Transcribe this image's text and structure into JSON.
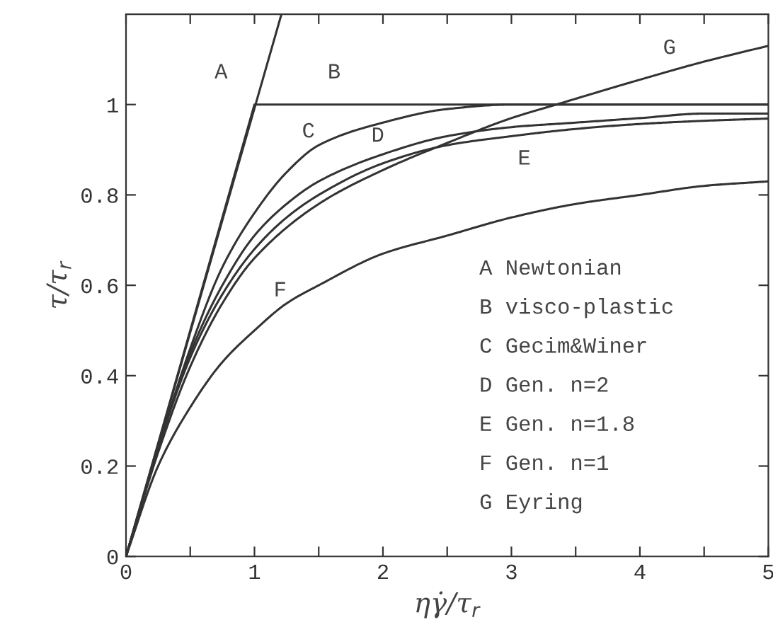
{
  "chart_data": {
    "type": "line",
    "xlabel": "ηγ̇/τ$_{r}$",
    "ylabel": "τ/τ$_{r}$",
    "xlim": [
      0,
      5
    ],
    "ylim": [
      0,
      1.2
    ],
    "xticks": [
      0,
      {
        "value": 0.5,
        "label": null
      },
      1,
      {
        "value": 1.5,
        "label": null
      },
      2,
      {
        "value": 2.5,
        "label": null
      },
      3,
      {
        "value": 3.5,
        "label": null
      },
      4,
      {
        "value": 4.5,
        "label": null
      },
      5
    ],
    "yticks": [
      0,
      0.2,
      0.4,
      0.6,
      0.8,
      1
    ],
    "grid": false,
    "legend": false,
    "series": [
      {
        "color": "#333333",
        "x": [
          0,
          1.21
        ],
        "values": [
          0,
          1.2
        ]
      },
      {
        "color": "#333333",
        "x": [
          0,
          1,
          5
        ],
        "values": [
          0,
          1,
          1
        ]
      },
      {
        "color": "#333333",
        "x": [
          0,
          0.25,
          0.5,
          0.75,
          1,
          1.25,
          1.5,
          2,
          2.5,
          3,
          3.5,
          4,
          4.5,
          5
        ],
        "values": [
          0,
          0.24,
          0.46,
          0.64,
          0.76,
          0.85,
          0.91,
          0.96,
          0.99,
          1.0,
          1.0,
          1.0,
          1.0,
          1.0
        ]
      },
      {
        "color": "#333333",
        "x": [
          0,
          0.25,
          0.5,
          0.75,
          1,
          1.25,
          1.5,
          2,
          2.5,
          3,
          3.5,
          4,
          4.5,
          5
        ],
        "values": [
          0,
          0.24,
          0.45,
          0.6,
          0.71,
          0.78,
          0.83,
          0.89,
          0.93,
          0.95,
          0.96,
          0.97,
          0.98,
          0.98
        ]
      },
      {
        "color": "#333333",
        "x": [
          0,
          0.25,
          0.5,
          0.75,
          1,
          1.25,
          1.5,
          2,
          2.5,
          3,
          3.5,
          4,
          4.5,
          5
        ],
        "values": [
          0,
          0.24,
          0.44,
          0.58,
          0.68,
          0.75,
          0.8,
          0.87,
          0.91,
          0.93,
          0.946,
          0.957,
          0.964,
          0.969
        ]
      },
      {
        "color": "#333333",
        "x": [
          0,
          0.25,
          0.5,
          0.75,
          1,
          1.25,
          1.5,
          2,
          2.5,
          3,
          3.5,
          4,
          4.5,
          5
        ],
        "values": [
          0,
          0.2,
          0.33,
          0.43,
          0.5,
          0.56,
          0.6,
          0.67,
          0.71,
          0.75,
          0.78,
          0.8,
          0.82,
          0.83
        ]
      },
      {
        "color": "#333333",
        "x": [
          0,
          0.25,
          0.5,
          0.75,
          1,
          1.5,
          2,
          2.5,
          3,
          3.35,
          4,
          4.5,
          5
        ],
        "values": [
          0,
          0.23,
          0.42,
          0.56,
          0.66,
          0.78,
          0.855,
          0.915,
          0.97,
          1.0,
          1.055,
          1.095,
          1.13
        ]
      }
    ],
    "annotations": [
      "A",
      "B",
      "C",
      "D",
      "E",
      "F",
      "G",
      "A Newtonian",
      "B visco-plastic",
      "C Gecim&Winer",
      "D Gen. n=2",
      "E Gen. n=1.8",
      "F Gen. n=1",
      "G Eyring"
    ]
  }
}
